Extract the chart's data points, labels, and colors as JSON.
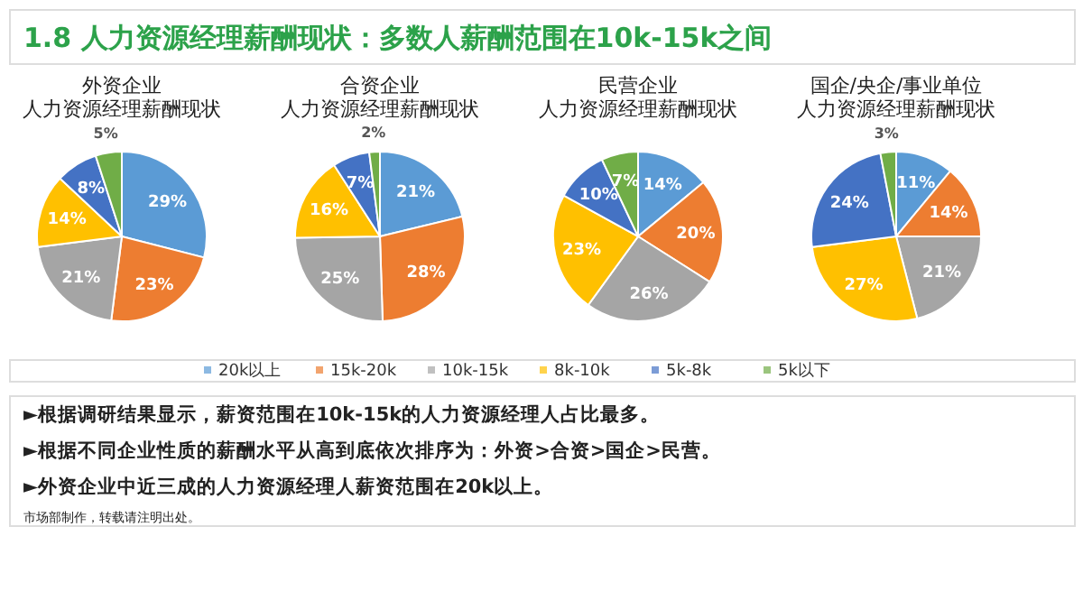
{
  "chart_data": [
    {
      "type": "other",
      "title": "1.8  人力资源经理薪酬现状：多数人薪酬范围在10k-15k之间"
    },
    {
      "type": "pie",
      "title": "外资企业人力资源经理薪酬现状",
      "categories": [
        "20k以上",
        "15k-20k",
        "10k-15k",
        "8k-10k",
        "5k-8k",
        "5k以下"
      ],
      "values": [
        29,
        23,
        21,
        14,
        8,
        5
      ],
      "value_labels": [
        "29%",
        "23%",
        "21%",
        "14%",
        "8%",
        "5%"
      ],
      "colors": [
        "#5b9bd5",
        "#ed7d31",
        "#a5a5a5",
        "#ffc000",
        "#4472c4",
        "#70ad47"
      ],
      "legend": "bottom"
    },
    {
      "type": "pie",
      "title": "合资企业人力资源经理薪酬现状",
      "values": [
        21,
        28,
        25,
        16,
        7,
        2
      ],
      "value_labels": [
        "21%",
        "28%",
        "25%",
        "16%",
        "7%",
        "2%"
      ],
      "colors": [
        "#5b9bd5",
        "#ed7d31",
        "#a5a5a5",
        "#ffc000",
        "#4472c4",
        "#70ad47"
      ]
    },
    {
      "type": "pie",
      "title": "民营企业人力资源经理薪酬现状",
      "values": [
        14,
        20,
        26,
        23,
        10,
        7
      ],
      "value_labels": [
        "14%",
        "20%",
        "26%",
        "23%",
        "10%",
        "7%"
      ],
      "colors": [
        "#5b9bd5",
        "#ed7d31",
        "#a5a5a5",
        "#ffc000",
        "#4472c4",
        "#70ad47"
      ]
    },
    {
      "type": "pie",
      "title": "国企/央企/事业单位人力资源经理薪酬现状",
      "values": [
        11,
        14,
        21,
        27,
        24,
        3
      ],
      "value_labels": [
        "11%",
        "14%",
        "21%",
        "27%",
        "24%",
        "3%"
      ],
      "colors": [
        "#5b9bd5",
        "#ed7d31",
        "#a5a5a5",
        "#ffc000",
        "#4472c4",
        "#70ad47"
      ]
    },
    {
      "type": "other",
      "annotations": [
        "►根据调研结果显示，薪资范围在10k-15k的人力资源经理人占比最多。",
        "►根据不同企业性质的薪酬水平从高到底依次排序为：外资>合资>国企>民营。",
        "►外资企业中近三成的人力资源经理人薪资范围在20k以上。",
        "市场部制作，转载请注明出处。"
      ]
    }
  ]
}
